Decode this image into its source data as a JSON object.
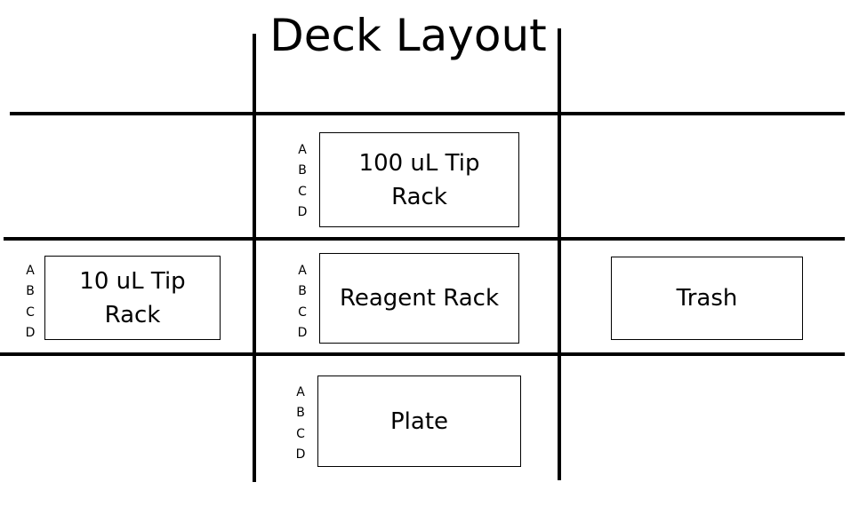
{
  "title": "Deck Layout",
  "row_labels": [
    "A",
    "B",
    "C",
    "D"
  ],
  "slots": {
    "tip_rack_100": {
      "label_line1": "100 uL Tip",
      "label_line2": "Rack"
    },
    "tip_rack_10": {
      "label_line1": "10 uL Tip",
      "label_line2": "Rack"
    },
    "reagent_rack": {
      "label": "Reagent Rack"
    },
    "trash": {
      "label": "Trash"
    },
    "plate": {
      "label": "Plate"
    }
  }
}
